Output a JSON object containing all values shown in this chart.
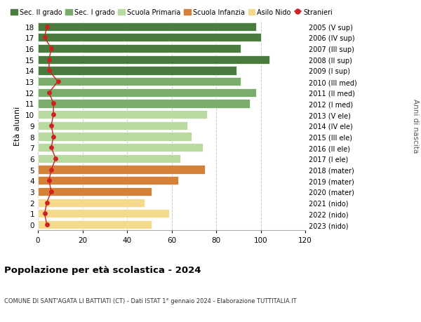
{
  "ages": [
    18,
    17,
    16,
    15,
    14,
    13,
    12,
    11,
    10,
    9,
    8,
    7,
    6,
    5,
    4,
    3,
    2,
    1,
    0
  ],
  "right_labels": [
    "2005 (V sup)",
    "2006 (IV sup)",
    "2007 (III sup)",
    "2008 (II sup)",
    "2009 (I sup)",
    "2010 (III med)",
    "2011 (II med)",
    "2012 (I med)",
    "2013 (V ele)",
    "2014 (IV ele)",
    "2015 (III ele)",
    "2016 (II ele)",
    "2017 (I ele)",
    "2018 (mater)",
    "2019 (mater)",
    "2020 (mater)",
    "2021 (nido)",
    "2022 (nido)",
    "2023 (nido)"
  ],
  "bar_values": [
    98,
    100,
    91,
    104,
    89,
    91,
    98,
    95,
    76,
    67,
    69,
    74,
    64,
    75,
    63,
    51,
    48,
    59,
    51
  ],
  "stranieri_values": [
    4,
    3,
    6,
    5,
    5,
    9,
    5,
    7,
    7,
    6,
    7,
    6,
    8,
    6,
    5,
    6,
    4,
    3,
    4
  ],
  "bar_colors": [
    "#4a7c3f",
    "#4a7c3f",
    "#4a7c3f",
    "#4a7c3f",
    "#4a7c3f",
    "#7aad6b",
    "#7aad6b",
    "#7aad6b",
    "#b8d9a0",
    "#b8d9a0",
    "#b8d9a0",
    "#b8d9a0",
    "#b8d9a0",
    "#d4813a",
    "#d4813a",
    "#d4813a",
    "#f5d98c",
    "#f5d98c",
    "#f5d98c"
  ],
  "legend_labels": [
    "Sec. II grado",
    "Sec. I grado",
    "Scuola Primaria",
    "Scuola Infanzia",
    "Asilo Nido",
    "Stranieri"
  ],
  "legend_colors": [
    "#4a7c3f",
    "#7aad6b",
    "#b8d9a0",
    "#d4813a",
    "#f5d98c",
    "#cc2222"
  ],
  "ylabel_left": "Età alunni",
  "ylabel_right": "Anni di nascita",
  "title": "Popolazione per età scolastica - 2024",
  "subtitle": "COMUNE DI SANT'AGATA LI BATTIATI (CT) - Dati ISTAT 1° gennaio 2024 - Elaborazione TUTTITALIA.IT",
  "xlim": [
    0,
    120
  ],
  "xticks": [
    0,
    20,
    40,
    60,
    80,
    100,
    120
  ],
  "bg_color": "#ffffff",
  "grid_color": "#cccccc",
  "stranieri_color": "#cc2222",
  "bar_height": 0.78
}
